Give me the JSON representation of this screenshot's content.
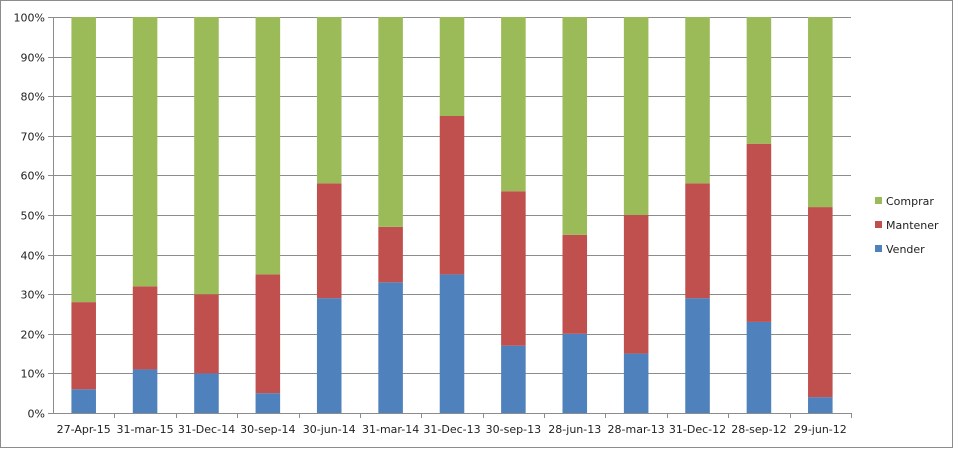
{
  "chart_data": {
    "type": "bar",
    "stacked": "percent",
    "categories": [
      "27-Apr-15",
      "31-mar-15",
      "31-Dec-14",
      "30-sep-14",
      "30-jun-14",
      "31-mar-14",
      "31-Dec-13",
      "30-sep-13",
      "28-jun-13",
      "28-mar-13",
      "31-Dec-12",
      "28-sep-12",
      "29-jun-12"
    ],
    "series": [
      {
        "name": "Vender",
        "color": "#4f81bd",
        "values": [
          6,
          11,
          10,
          5,
          29,
          33,
          35,
          17,
          20,
          15,
          29,
          23,
          4
        ]
      },
      {
        "name": "Mantener",
        "color": "#c0504d",
        "values": [
          22,
          21,
          20,
          30,
          29,
          14,
          40,
          39,
          25,
          35,
          29,
          45,
          48
        ]
      },
      {
        "name": "Comprar",
        "color": "#9bbb59",
        "values": [
          72,
          68,
          70,
          65,
          42,
          53,
          25,
          44,
          55,
          50,
          42,
          32,
          48
        ]
      }
    ],
    "y_ticks": [
      "0%",
      "10%",
      "20%",
      "30%",
      "40%",
      "50%",
      "60%",
      "70%",
      "80%",
      "90%",
      "100%"
    ],
    "ylim": [
      0,
      100
    ],
    "grid": true,
    "legend_position": "right",
    "legend_order": [
      "Comprar",
      "Mantener",
      "Vender"
    ],
    "title": "",
    "xlabel": "",
    "ylabel": ""
  }
}
